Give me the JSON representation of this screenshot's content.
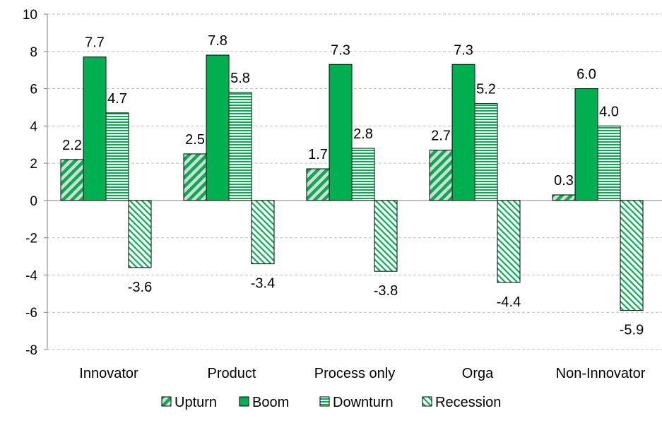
{
  "chart_data": {
    "type": "bar",
    "categories": [
      "Innovator",
      "Product",
      "Process only",
      "Orga",
      "Non-Innovator"
    ],
    "series": [
      {
        "name": "Upturn",
        "values": [
          2.2,
          2.5,
          1.7,
          2.7,
          0.3
        ],
        "labels": [
          "2.2",
          "2.5",
          "1.7",
          "2.7",
          "0.3"
        ],
        "pattern": "diag-down",
        "color": "#00B050"
      },
      {
        "name": "Boom",
        "values": [
          7.7,
          7.8,
          7.3,
          7.3,
          6.0
        ],
        "labels": [
          "7.7",
          "7.8",
          "7.3",
          "7.3",
          "6.0"
        ],
        "pattern": "solid",
        "color": "#00B050"
      },
      {
        "name": "Downturn",
        "values": [
          4.7,
          5.8,
          2.8,
          5.2,
          4.0
        ],
        "labels": [
          "4.7",
          "5.8",
          "2.8",
          "5.2",
          "4.0"
        ],
        "pattern": "horizontal",
        "color": "#00B050"
      },
      {
        "name": "Recession",
        "values": [
          -3.6,
          -3.4,
          -3.8,
          -4.4,
          -5.9
        ],
        "labels": [
          "-3.6",
          "-3.4",
          "-3.8",
          "-4.4",
          "-5.9"
        ],
        "pattern": "diag-light",
        "color": "#00B050"
      }
    ],
    "ylim": [
      -8,
      10
    ],
    "yticks": [
      10,
      8,
      6,
      4,
      2,
      0,
      -2,
      -4,
      -6,
      -8
    ],
    "grid": true,
    "legend_position": "bottom",
    "title": "",
    "xlabel": "",
    "ylabel": ""
  }
}
